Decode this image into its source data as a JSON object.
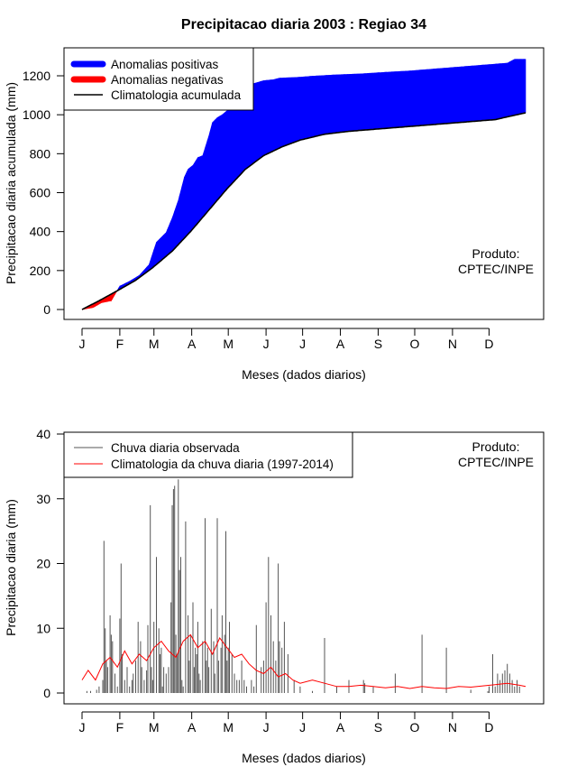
{
  "title": "Precipitacao diaria 2003 : Regiao 34",
  "colors": {
    "positive": "#0000ff",
    "negative": "#ff0000",
    "line": "#000000",
    "clim": "#ff0000",
    "bars": "#555555"
  },
  "chart_data": [
    {
      "type": "area",
      "id": "accumulated",
      "ylabel": "Precipitacao diaria acumulada (mm)",
      "xlabel": "Meses (dados diarios)",
      "xlim": [
        1,
        365
      ],
      "ylim": [
        0,
        1300
      ],
      "yticks": [
        0,
        200,
        400,
        600,
        800,
        1000,
        1200
      ],
      "month_labels": [
        "J",
        "F",
        "M",
        "A",
        "M",
        "J",
        "J",
        "A",
        "S",
        "O",
        "N",
        "D"
      ],
      "month_days": [
        1,
        32,
        60,
        91,
        121,
        152,
        182,
        213,
        244,
        274,
        305,
        335
      ],
      "legend": [
        "Anomalias positivas",
        "Anomalias negativas",
        "Climatologia acumulada"
      ],
      "annotation": [
        "Produto:",
        "CPTEC/INPE"
      ],
      "climatology_accumulated": {
        "days": [
          1,
          15,
          31,
          45,
          59,
          75,
          90,
          105,
          120,
          135,
          150,
          165,
          180,
          200,
          220,
          240,
          260,
          280,
          300,
          320,
          340,
          365
        ],
        "values": [
          0,
          45,
          100,
          150,
          215,
          300,
          400,
          510,
          620,
          720,
          790,
          835,
          870,
          900,
          915,
          925,
          935,
          945,
          955,
          965,
          975,
          1010
        ]
      },
      "observed_accumulated": {
        "days": [
          1,
          10,
          17,
          25,
          32,
          40,
          48,
          56,
          62,
          70,
          75,
          80,
          85,
          88,
          92,
          96,
          100,
          105,
          108,
          112,
          116,
          120,
          125,
          130,
          136,
          142,
          150,
          158,
          163,
          170,
          178,
          190,
          210,
          230,
          250,
          270,
          290,
          310,
          330,
          350,
          356,
          365
        ],
        "values": [
          0,
          10,
          35,
          45,
          120,
          145,
          175,
          230,
          345,
          395,
          470,
          560,
          680,
          720,
          740,
          780,
          790,
          890,
          960,
          985,
          1000,
          1020,
          1040,
          1040,
          1130,
          1160,
          1175,
          1180,
          1188,
          1190,
          1192,
          1198,
          1205,
          1210,
          1218,
          1225,
          1235,
          1245,
          1255,
          1265,
          1285,
          1285
        ]
      }
    },
    {
      "type": "bar",
      "id": "daily",
      "ylabel": "Precipitacao diaria (mm)",
      "xlabel": "Meses (dados diarios)",
      "xlim": [
        1,
        365
      ],
      "ylim": [
        0,
        40
      ],
      "yticks": [
        0,
        10,
        20,
        30,
        40
      ],
      "month_labels": [
        "J",
        "F",
        "M",
        "A",
        "M",
        "J",
        "J",
        "A",
        "S",
        "O",
        "N",
        "D"
      ],
      "month_days": [
        1,
        32,
        60,
        91,
        121,
        152,
        182,
        213,
        244,
        274,
        305,
        335
      ],
      "legend": [
        "Chuva diaria observada",
        "Climatologia da chuva diaria (1997-2014)"
      ],
      "annotation": [
        "Produto:",
        "CPTEC/INPE"
      ],
      "observed_daily": {
        "days": [
          5,
          8,
          13,
          15,
          18,
          19,
          20,
          21,
          22,
          24,
          25,
          26,
          28,
          30,
          32,
          33,
          34,
          36,
          38,
          40,
          42,
          43,
          45,
          47,
          49,
          50,
          52,
          54,
          55,
          57,
          58,
          59,
          60,
          62,
          64,
          65,
          66,
          67,
          68,
          70,
          72,
          74,
          75,
          76,
          77,
          78,
          79,
          80,
          81,
          82,
          83,
          84,
          86,
          88,
          89,
          90,
          92,
          93,
          94,
          95,
          96,
          97,
          98,
          100,
          102,
          103,
          104,
          105,
          107,
          109,
          110,
          112,
          113,
          115,
          116,
          118,
          119,
          120,
          121,
          122,
          124,
          126,
          128,
          130,
          132,
          134,
          136,
          140,
          142,
          144,
          148,
          150,
          152,
          154,
          156,
          158,
          160,
          162,
          163,
          165,
          167,
          170,
          175,
          180,
          190,
          200,
          210,
          220,
          232,
          233,
          240,
          258,
          280,
          300,
          320,
          334,
          335,
          338,
          340,
          342,
          344,
          346,
          348,
          350,
          352,
          354,
          356,
          358,
          360
        ],
        "values": [
          0.3,
          0.3,
          0.5,
          1,
          2,
          23.5,
          10,
          5,
          4,
          12,
          9,
          8,
          3,
          1,
          11.5,
          20,
          6,
          2,
          4,
          1,
          2,
          3,
          5,
          11,
          8,
          4,
          2,
          3.5,
          10.5,
          29,
          4,
          2,
          11,
          21,
          10,
          6,
          7,
          1,
          4,
          3,
          4,
          14,
          29,
          31.5,
          32,
          9,
          6,
          33,
          19,
          21,
          2,
          1,
          26.5,
          12,
          5,
          9,
          14,
          4,
          7,
          6,
          11,
          3,
          2,
          8,
          27,
          5,
          7,
          4,
          13,
          8,
          3,
          27,
          5,
          7,
          12,
          9,
          25,
          5,
          7,
          11,
          6,
          3,
          2,
          2,
          5,
          2,
          1,
          2,
          1,
          10.5,
          4,
          5,
          14,
          21,
          12,
          8,
          5,
          20,
          8,
          7,
          11,
          6,
          2,
          1,
          0.3,
          8.5,
          1,
          2,
          2,
          1.5,
          1,
          3,
          9,
          7,
          0.5,
          0.3,
          1,
          6,
          1,
          3,
          2,
          3,
          3.5,
          4.5,
          3,
          2,
          1,
          2,
          1
        ]
      },
      "climatology_daily": {
        "days": [
          1,
          6,
          12,
          18,
          24,
          30,
          36,
          42,
          48,
          54,
          60,
          66,
          72,
          78,
          84,
          90,
          96,
          102,
          108,
          114,
          120,
          126,
          132,
          138,
          144,
          150,
          156,
          162,
          168,
          174,
          180,
          190,
          200,
          210,
          220,
          230,
          240,
          250,
          260,
          270,
          280,
          290,
          300,
          310,
          320,
          330,
          340,
          350,
          360,
          365
        ],
        "values": [
          2,
          3.5,
          2,
          4.5,
          5.5,
          4,
          6.5,
          4.5,
          6,
          5,
          7,
          8,
          6.5,
          5.5,
          8,
          9,
          7,
          8,
          6,
          8.5,
          7,
          5.5,
          6,
          4.5,
          3.5,
          3,
          4,
          2.5,
          3,
          2,
          1.5,
          2,
          1.5,
          1,
          1,
          1.2,
          1,
          0.8,
          1,
          0.7,
          1,
          0.8,
          0.7,
          1,
          0.9,
          1.1,
          1.3,
          1.5,
          1.2,
          1
        ]
      }
    }
  ]
}
